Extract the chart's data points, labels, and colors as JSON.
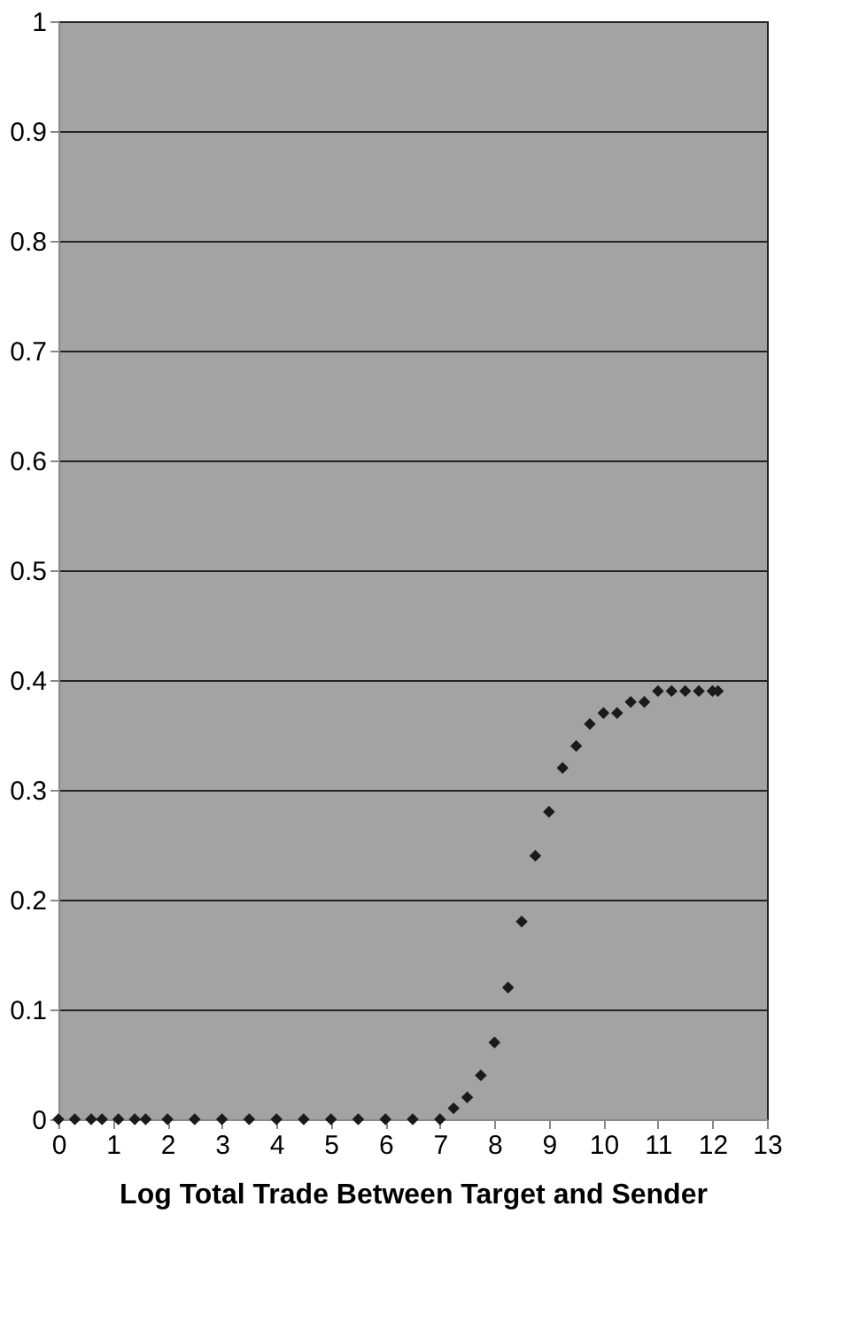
{
  "chart_data": {
    "type": "scatter",
    "xlabel": "Log Total Trade Between Target and Sender",
    "x": [
      0,
      0.3,
      0.6,
      0.8,
      1.1,
      1.4,
      1.6,
      2,
      2.5,
      3,
      3.5,
      4,
      4.5,
      5,
      5.5,
      6,
      6.5,
      7,
      7.25,
      7.5,
      7.75,
      8,
      8.25,
      8.5,
      8.75,
      9,
      9.25,
      9.5,
      9.75,
      10,
      10.25,
      10.5,
      10.75,
      11,
      11.25,
      11.5,
      11.75,
      12,
      12.1
    ],
    "values": [
      0,
      0,
      0,
      0,
      0,
      0,
      0,
      0,
      0,
      0,
      0,
      0,
      0,
      0,
      0,
      0,
      0,
      0,
      0.01,
      0.02,
      0.04,
      0.07,
      0.12,
      0.18,
      0.24,
      0.28,
      0.32,
      0.34,
      0.36,
      0.37,
      0.37,
      0.38,
      0.38,
      0.39,
      0.39,
      0.39,
      0.39,
      0.39,
      0.39
    ],
    "color": "#1a1a1a",
    "marker": "diamond",
    "xlim": [
      0,
      13
    ],
    "xticks": [
      0,
      1,
      2,
      3,
      4,
      5,
      6,
      7,
      8,
      9,
      10,
      11,
      12,
      13
    ],
    "ylim": [
      0,
      1
    ],
    "yticks": [
      0,
      0.1,
      0.2,
      0.3,
      0.4,
      0.5,
      0.6,
      0.7,
      0.8,
      0.9,
      1
    ],
    "grid": "y",
    "legend": false
  }
}
